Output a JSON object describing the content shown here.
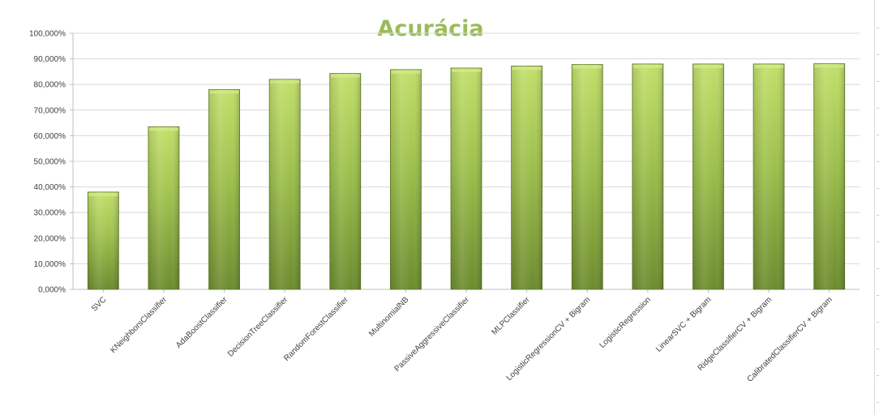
{
  "chart_data": {
    "type": "bar",
    "title": "Acurácia",
    "xlabel": "",
    "ylabel": "",
    "ylim": [
      0,
      100
    ],
    "y_tick_labels": [
      "0,000%",
      "10,000%",
      "20,000%",
      "30,000%",
      "40,000%",
      "50,000%",
      "60,000%",
      "70,000%",
      "80,000%",
      "90,000%",
      "100,000%"
    ],
    "grid": true,
    "legend": "none",
    "categories": [
      "SVC",
      "KNeighborsClassifier",
      "AdaBoostClassifier",
      "DecisionTreeClassifier",
      "RandomForestClassifier",
      "MultinomialNB",
      "PassiveAggressiveClassifier",
      "MLPClassifier",
      "LogisticRegressionCV + Bigram",
      "LogisticRegression",
      "LinearSVC + Bigram",
      "RidgeClassifierCV + Bigram",
      "CalibratedClassifierCV + Bigram"
    ],
    "values": [
      38.0,
      63.5,
      78.0,
      82.0,
      84.3,
      85.8,
      86.4,
      87.2,
      87.8,
      88.0,
      88.0,
      88.0,
      88.1
    ],
    "colors": {
      "bar_light": "#bcdb5e",
      "bar_mid": "#9bbb59",
      "bar_dark": "#6e8d2f",
      "bar_edge": "#5f7a28",
      "title": "#9bbb59"
    }
  }
}
